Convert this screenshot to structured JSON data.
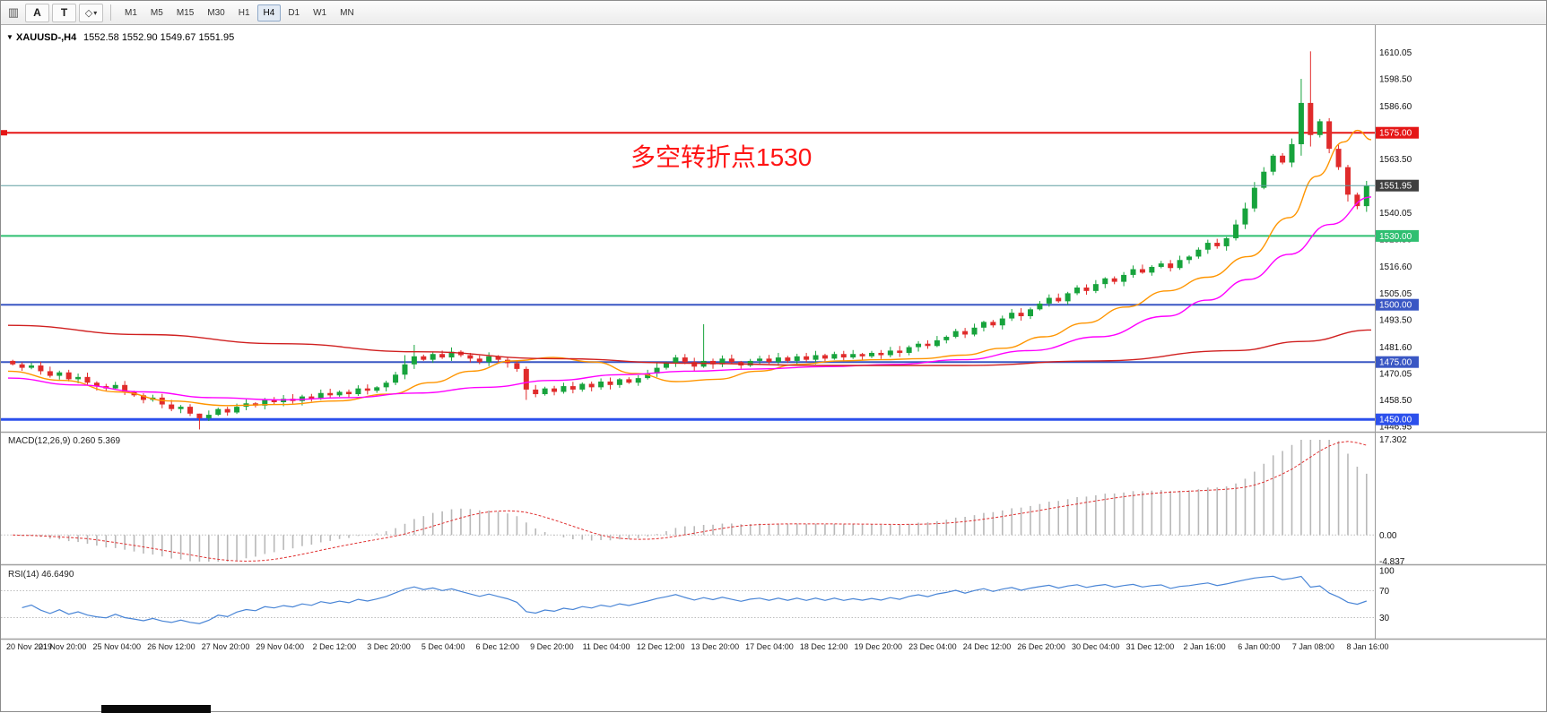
{
  "toolbar": {
    "chart_icon": "▥",
    "a_label": "A",
    "t_label": "T",
    "shapes_icon": "◇",
    "caret_icon": "▾",
    "timeframes": [
      "M1",
      "M5",
      "M15",
      "M30",
      "H1",
      "H4",
      "D1",
      "W1",
      "MN"
    ],
    "active_timeframe": "H4"
  },
  "header": {
    "collapse_icon": "▼",
    "symbol": "XAUUSD-,H4",
    "ohlc": "1552.58 1552.90 1549.67 1551.95"
  },
  "annotation": {
    "text": "多空转折点1530",
    "color": "#ff1414"
  },
  "chart_data": {
    "type": "candlestick",
    "symbol": "XAUUSD",
    "timeframe": "H4",
    "title": "XAUUSD-,H4",
    "ohlc_display": {
      "open": "1552.58",
      "high": "1552.90",
      "low": "1549.67",
      "close": "1551.95"
    },
    "price_range": [
      1445,
      1620
    ],
    "price_ticks": [
      1610.05,
      1598.5,
      1586.6,
      1563.5,
      1540.05,
      1528.5,
      1516.6,
      1505.05,
      1493.5,
      1481.6,
      1470.05,
      1458.5,
      1446.95
    ],
    "levels": [
      {
        "price": 1575.0,
        "label": "1575.00",
        "color": "#e51616",
        "width": 2,
        "anchor": true
      },
      {
        "price": 1530.0,
        "label": "1530.00",
        "color": "#2fbf71",
        "width": 2,
        "anchor": false
      },
      {
        "price": 1500.0,
        "label": "1500.00",
        "color": "#3a57c4",
        "width": 2,
        "anchor": false
      },
      {
        "price": 1475.0,
        "label": "1475.00",
        "color": "#3a57c4",
        "width": 2,
        "anchor": false
      },
      {
        "price": 1450.0,
        "label": "1450.00",
        "color": "#2c50ec",
        "width": 3,
        "anchor": false
      }
    ],
    "bid": {
      "price": 1551.95,
      "label": "1551.95",
      "line_color": "#5f9ea0",
      "box_color": "#3f3f3f"
    },
    "candles": {
      "up_color": "#17a33c",
      "down_color": "#e02b2b",
      "first_open": 1475.5,
      "closes": [
        1474,
        1472.5,
        1473.5,
        1471,
        1469,
        1470.5,
        1467.5,
        1468.5,
        1466,
        1464.5,
        1463.5,
        1465,
        1462,
        1460.5,
        1458.5,
        1459.5,
        1456.5,
        1454.5,
        1455.5,
        1452.5,
        1450.5,
        1452,
        1454.5,
        1453,
        1455.5,
        1457,
        1456,
        1458.5,
        1457.5,
        1459,
        1458,
        1460,
        1459,
        1461.5,
        1460.5,
        1462,
        1461,
        1463.5,
        1462.5,
        1464,
        1466,
        1469.5,
        1474,
        1477.5,
        1476,
        1478.5,
        1477,
        1479.5,
        1478,
        1476.5,
        1475,
        1477.5,
        1476,
        1474.5,
        1472,
        1463,
        1461,
        1463.5,
        1462,
        1464.5,
        1463,
        1465.5,
        1464,
        1466.5,
        1465,
        1467.5,
        1466,
        1468,
        1470,
        1472.5,
        1474.5,
        1477,
        1475,
        1473,
        1475.5,
        1474,
        1476.5,
        1475,
        1473.5,
        1475.5,
        1476.5,
        1475,
        1477,
        1475.5,
        1477.5,
        1476,
        1478,
        1476.5,
        1478.5,
        1477,
        1478.5,
        1477.5,
        1479,
        1478,
        1480,
        1479,
        1481.5,
        1483,
        1482,
        1484.5,
        1486,
        1488.5,
        1487,
        1490,
        1492.5,
        1491,
        1494,
        1496.5,
        1495,
        1498,
        1500.5,
        1503,
        1501.5,
        1505,
        1507.5,
        1506,
        1509,
        1511.5,
        1510,
        1513,
        1515.5,
        1514,
        1516.5,
        1518,
        1516,
        1519.5,
        1521,
        1524,
        1527,
        1525.5,
        1529,
        1535,
        1542,
        1551,
        1558,
        1565,
        1562,
        1570,
        1588,
        1574,
        1580,
        1568,
        1560,
        1548,
        1543,
        1551.95
      ],
      "wick_overrides": {
        "20": [
          1452.5,
          1445.6
        ],
        "42": [
          1478.0,
          1467.5
        ],
        "43": [
          1482.5,
          1472.0
        ],
        "55": [
          1473.0,
          1458.5
        ],
        "74": [
          1491.5,
          1472.5
        ],
        "131": [
          1537.0,
          1528.0
        ],
        "132": [
          1544.5,
          1533.0
        ],
        "133": [
          1553.5,
          1540.5
        ],
        "137": [
          1572.5,
          1560.0
        ],
        "138": [
          1598.5,
          1565.0
        ],
        "139": [
          1610.5,
          1569.0
        ],
        "143": [
          1561.0,
          1545.0
        ],
        "145": [
          1554.0,
          1540.5
        ]
      }
    },
    "moving_averages": [
      {
        "name": "ma-fast-orange",
        "color": "#ff9500",
        "points": [
          [
            0,
            1471
          ],
          [
            0.04,
            1467
          ],
          [
            0.08,
            1462
          ],
          [
            0.12,
            1458
          ],
          [
            0.16,
            1456
          ],
          [
            0.2,
            1456.5
          ],
          [
            0.24,
            1458
          ],
          [
            0.28,
            1461
          ],
          [
            0.31,
            1466
          ],
          [
            0.34,
            1471
          ],
          [
            0.37,
            1475.5
          ],
          [
            0.4,
            1477
          ],
          [
            0.43,
            1475
          ],
          [
            0.46,
            1470
          ],
          [
            0.49,
            1466.5
          ],
          [
            0.52,
            1467.5
          ],
          [
            0.55,
            1471
          ],
          [
            0.58,
            1474
          ],
          [
            0.61,
            1475.5
          ],
          [
            0.64,
            1476
          ],
          [
            0.67,
            1476.5
          ],
          [
            0.7,
            1478
          ],
          [
            0.73,
            1481
          ],
          [
            0.76,
            1486
          ],
          [
            0.79,
            1492
          ],
          [
            0.82,
            1499
          ],
          [
            0.85,
            1506
          ],
          [
            0.88,
            1512
          ],
          [
            0.91,
            1521
          ],
          [
            0.94,
            1538
          ],
          [
            0.96,
            1556
          ],
          [
            0.98,
            1571
          ],
          [
            0.99,
            1576
          ],
          [
            1,
            1572
          ]
        ]
      },
      {
        "name": "ma-mid-magenta",
        "color": "#ff00ff",
        "points": [
          [
            0,
            1468
          ],
          [
            0.05,
            1465
          ],
          [
            0.1,
            1462
          ],
          [
            0.15,
            1459.5
          ],
          [
            0.2,
            1458.5
          ],
          [
            0.25,
            1459.5
          ],
          [
            0.3,
            1461.5
          ],
          [
            0.35,
            1464
          ],
          [
            0.4,
            1467
          ],
          [
            0.45,
            1469.5
          ],
          [
            0.5,
            1471
          ],
          [
            0.55,
            1472
          ],
          [
            0.6,
            1473
          ],
          [
            0.65,
            1474
          ],
          [
            0.7,
            1476
          ],
          [
            0.75,
            1480
          ],
          [
            0.8,
            1486
          ],
          [
            0.85,
            1495
          ],
          [
            0.88,
            1502
          ],
          [
            0.91,
            1511
          ],
          [
            0.94,
            1522
          ],
          [
            0.97,
            1535
          ],
          [
            1,
            1547
          ]
        ]
      },
      {
        "name": "ma-slow-red",
        "color": "#d02020",
        "points": [
          [
            0,
            1491
          ],
          [
            0.1,
            1487
          ],
          [
            0.2,
            1483
          ],
          [
            0.3,
            1479.5
          ],
          [
            0.4,
            1476.5
          ],
          [
            0.5,
            1474.5
          ],
          [
            0.6,
            1473.5
          ],
          [
            0.7,
            1473.5
          ],
          [
            0.8,
            1475.5
          ],
          [
            0.9,
            1480
          ],
          [
            0.95,
            1484
          ],
          [
            1,
            1489
          ]
        ]
      }
    ],
    "macd": {
      "label": "MACD(12,26,9)",
      "values": "0.260 5.369",
      "upper": 17.302,
      "lower": -4.837,
      "upper_label": "17.302",
      "zero_label": "0.00",
      "lower_label": "-4.837",
      "histogram_color": "#b8b8b8",
      "signal_color": "#e03030",
      "fast": 12,
      "slow": 26,
      "signal_period": 9
    },
    "rsi": {
      "label": "RSI(14)",
      "value": "46.6490",
      "period": 14,
      "ticks": [
        100,
        70,
        30
      ],
      "level_lines": [
        70,
        30
      ],
      "line_color": "#4985d6"
    },
    "time_labels": [
      "20 Nov 2019",
      "21 Nov 20:00",
      "25 Nov 04:00",
      "26 Nov 12:00",
      "27 Nov 20:00",
      "29 Nov 04:00",
      "2 Dec 12:00",
      "3 Dec 20:00",
      "5 Dec 04:00",
      "6 Dec 12:00",
      "9 Dec 20:00",
      "11 Dec 04:00",
      "12 Dec 12:00",
      "13 Dec 20:00",
      "17 Dec 04:00",
      "18 Dec 12:00",
      "19 Dec 20:00",
      "23 Dec 04:00",
      "24 Dec 12:00",
      "26 Dec 20:00",
      "30 Dec 04:00",
      "31 Dec 12:00",
      "2 Jan 16:00",
      "6 Jan 00:00",
      "7 Jan 08:00",
      "8 Jan 16:00"
    ],
    "legend_position": "none",
    "grid": false
  }
}
